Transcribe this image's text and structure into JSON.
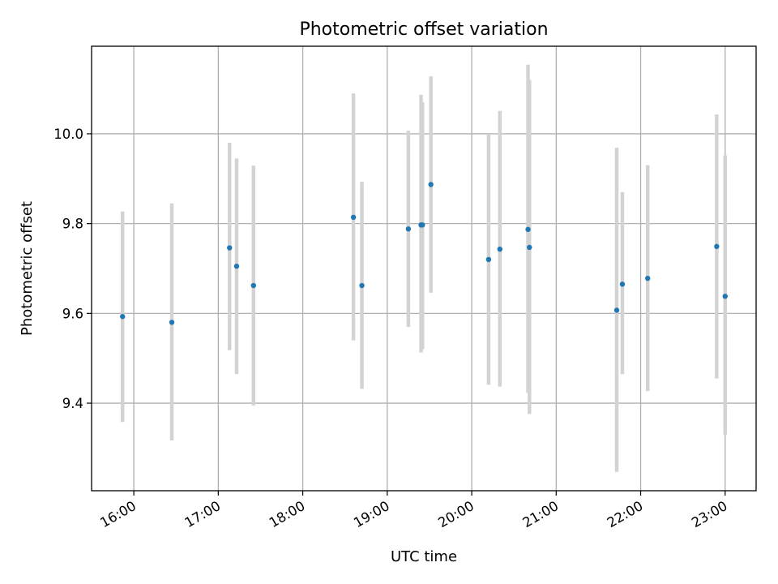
{
  "chart_data": {
    "type": "scatter",
    "title": "Photometric offset variation",
    "xlabel": "UTC time",
    "ylabel": "Photometric offset",
    "x_ticks": [
      "16:00",
      "17:00",
      "18:00",
      "19:00",
      "20:00",
      "21:00",
      "22:00",
      "23:00"
    ],
    "y_ticks": [
      "9.4",
      "9.6",
      "9.8",
      "10.0"
    ],
    "xlim": [
      "15:30",
      "23:22"
    ],
    "ylim": [
      9.205,
      10.195
    ],
    "grid": true,
    "series": [
      {
        "marker_color": "#1f77b4",
        "error_color": "#d3d3d3",
        "points": [
          {
            "x": "15:52",
            "y": 9.593,
            "ylow": 9.358,
            "yhigh": 9.827
          },
          {
            "x": "16:27",
            "y": 9.58,
            "ylow": 9.317,
            "yhigh": 9.845
          },
          {
            "x": "17:08",
            "y": 9.746,
            "ylow": 9.518,
            "yhigh": 9.98
          },
          {
            "x": "17:13",
            "y": 9.705,
            "ylow": 9.465,
            "yhigh": 9.945
          },
          {
            "x": "17:25",
            "y": 9.662,
            "ylow": 9.395,
            "yhigh": 9.929
          },
          {
            "x": "18:36",
            "y": 9.814,
            "ylow": 9.54,
            "yhigh": 10.09
          },
          {
            "x": "18:42",
            "y": 9.662,
            "ylow": 9.432,
            "yhigh": 9.893
          },
          {
            "x": "19:15",
            "y": 9.788,
            "ylow": 9.57,
            "yhigh": 10.007
          },
          {
            "x": "19:24",
            "y": 9.797,
            "ylow": 9.513,
            "yhigh": 10.087
          },
          {
            "x": "19:25",
            "y": 9.797,
            "ylow": 9.52,
            "yhigh": 10.07
          },
          {
            "x": "19:31",
            "y": 9.887,
            "ylow": 9.646,
            "yhigh": 10.128
          },
          {
            "x": "20:12",
            "y": 9.72,
            "ylow": 9.441,
            "yhigh": 9.998
          },
          {
            "x": "20:20",
            "y": 9.743,
            "ylow": 9.437,
            "yhigh": 10.051
          },
          {
            "x": "20:40",
            "y": 9.787,
            "ylow": 9.423,
            "yhigh": 10.154
          },
          {
            "x": "20:41",
            "y": 9.747,
            "ylow": 9.376,
            "yhigh": 10.12
          },
          {
            "x": "21:43",
            "y": 9.607,
            "ylow": 9.247,
            "yhigh": 9.969
          },
          {
            "x": "21:47",
            "y": 9.665,
            "ylow": 9.465,
            "yhigh": 9.87
          },
          {
            "x": "22:05",
            "y": 9.678,
            "ylow": 9.427,
            "yhigh": 9.93
          },
          {
            "x": "22:54",
            "y": 9.749,
            "ylow": 9.455,
            "yhigh": 10.043
          },
          {
            "x": "23:00",
            "y": 9.638,
            "ylow": 9.33,
            "yhigh": 9.952
          }
        ]
      }
    ]
  }
}
